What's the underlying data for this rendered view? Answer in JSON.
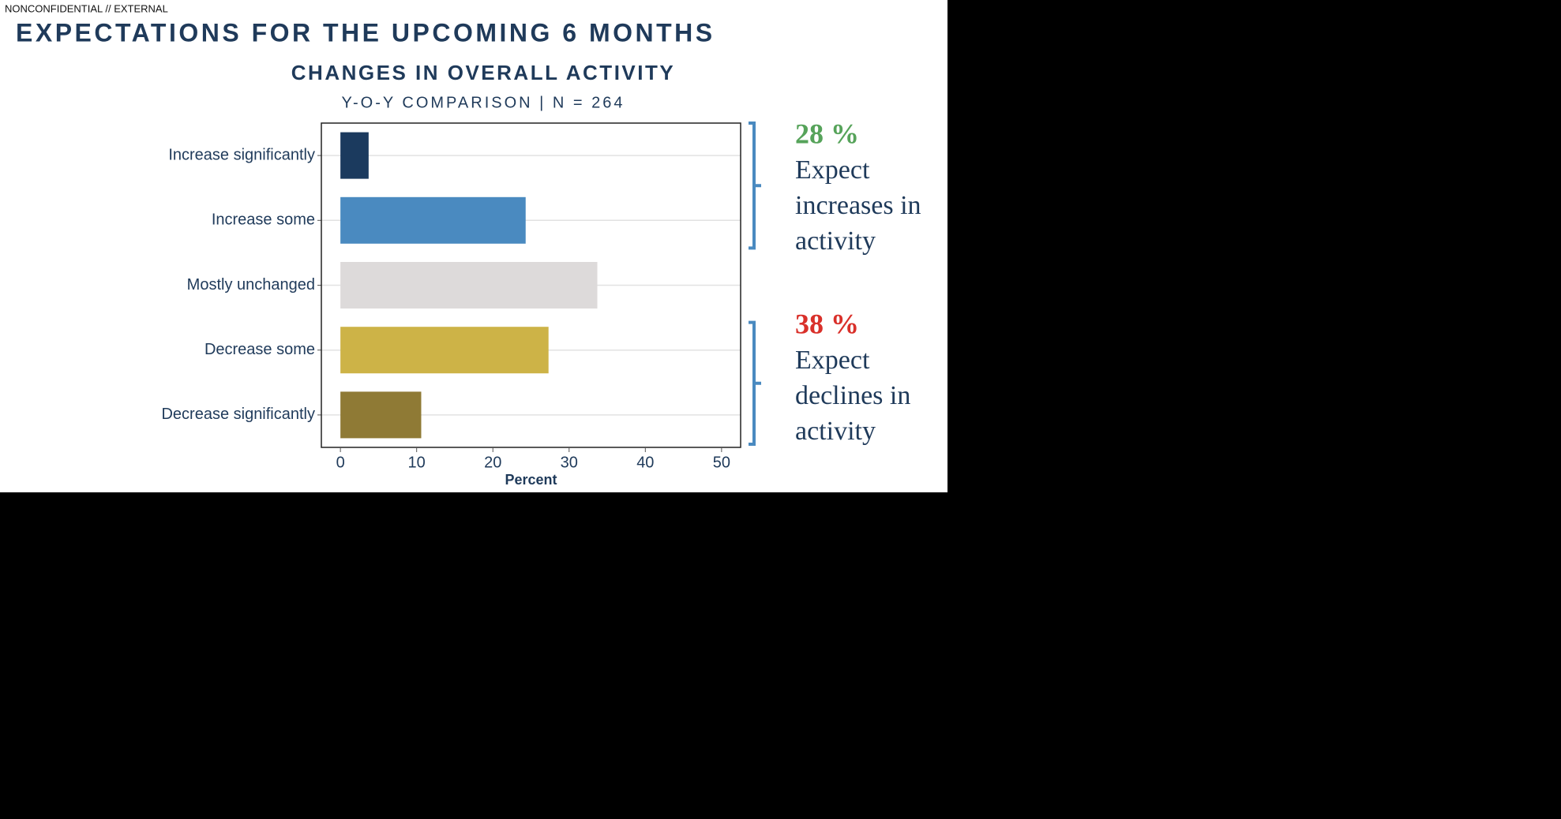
{
  "header": {
    "classification": "NONCONFIDENTIAL // EXTERNAL",
    "title": "EXPECTATIONS FOR THE UPCOMING 6 MONTHS"
  },
  "chart_data": {
    "type": "bar",
    "orientation": "horizontal",
    "title": "CHANGES IN OVERALL ACTIVITY",
    "subtitle": "Y-O-Y COMPARISON | N = 264",
    "categories": [
      "Increase significantly",
      "Increase some",
      "Mostly unchanged",
      "Decrease some",
      "Decrease significantly"
    ],
    "values": [
      3.7,
      24.3,
      33.7,
      27.3,
      10.6
    ],
    "colors": [
      "#1b3a5e",
      "#4a8ac0",
      "#dddada",
      "#cdb347",
      "#8f7a35"
    ],
    "xlim": [
      -2.5,
      52.5
    ],
    "xticks": [
      0,
      10,
      20,
      30,
      40,
      50
    ],
    "xlabel": "Percent",
    "grid": true
  },
  "annotations": [
    {
      "headline": "28 %",
      "color": "#56a35a",
      "lines": [
        "Expect",
        "increases in",
        "activity"
      ]
    },
    {
      "headline": "38 %",
      "color": "#d9302a",
      "lines": [
        "Expect",
        "declines in",
        "activity"
      ]
    }
  ]
}
